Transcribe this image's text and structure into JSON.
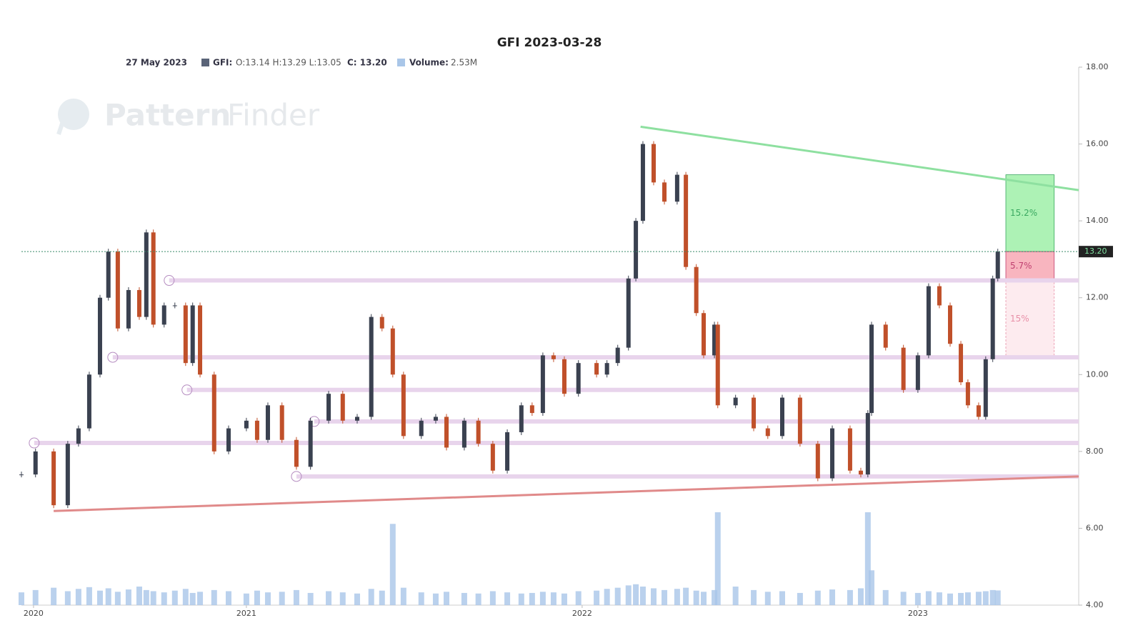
{
  "chart_data": {
    "type": "candlestick",
    "title": "GFI 2023-03-28",
    "header": {
      "date": "27 May 2023",
      "symbol": "GFI:",
      "ohl": "O:13.14 H:13.29 L:13.05",
      "close": "C: 13.20",
      "volume_label": "Volume:",
      "volume": "2.53M"
    },
    "watermark": {
      "first": "Pattern",
      "second": "Finder"
    },
    "x": [
      2020.33,
      2020.372,
      2020.426,
      2020.468,
      2020.5,
      2020.532,
      2020.564,
      2020.589,
      2020.617,
      2020.649,
      2020.681,
      2020.702,
      2020.723,
      2020.755,
      2020.787,
      2020.819,
      2020.84,
      2020.862,
      2020.904,
      2020.947,
      2021.0,
      2021.032,
      2021.064,
      2021.106,
      2021.149,
      2021.191,
      2021.245,
      2021.287,
      2021.33,
      2021.372,
      2021.404,
      2021.436,
      2021.468,
      2021.521,
      2021.564,
      2021.596,
      2021.649,
      2021.691,
      2021.734,
      2021.777,
      2021.819,
      2021.851,
      2021.883,
      2021.915,
      2021.947,
      2021.989,
      2022.043,
      2022.074,
      2022.106,
      2022.138,
      2022.16,
      2022.181,
      2022.213,
      2022.245,
      2022.283,
      2022.309,
      2022.34,
      2022.362,
      2022.394,
      2022.404,
      2022.457,
      2022.511,
      2022.553,
      2022.596,
      2022.649,
      2022.702,
      2022.745,
      2022.798,
      2022.83,
      2022.851,
      2022.862,
      2022.904,
      2022.957,
      2023.0,
      2023.032,
      2023.064,
      2023.096,
      2023.128,
      2023.149,
      2023.181,
      2023.202,
      2023.223,
      2023.238
    ],
    "series": [
      {
        "name": "GFI",
        "color": "#c0502a",
        "up_color": "#3a4150",
        "values": [
          7.4,
          8.0,
          6.6,
          8.2,
          8.6,
          10.0,
          12.0,
          13.2,
          11.2,
          12.2,
          11.5,
          13.7,
          11.3,
          11.8,
          11.8,
          10.3,
          11.8,
          10.0,
          8.0,
          8.6,
          8.8,
          8.3,
          9.2,
          8.3,
          7.6,
          8.8,
          9.5,
          8.8,
          8.9,
          11.5,
          11.2,
          10.0,
          8.4,
          8.8,
          8.9,
          8.1,
          8.8,
          8.2,
          7.5,
          8.5,
          9.2,
          9.0,
          10.5,
          10.4,
          9.5,
          10.3,
          10.0,
          10.3,
          10.7,
          12.5,
          14.0,
          16.0,
          15.0,
          14.5,
          15.2,
          12.8,
          11.6,
          10.5,
          11.3,
          9.2,
          9.4,
          8.6,
          8.4,
          9.4,
          8.2,
          7.3,
          8.6,
          7.5,
          7.4,
          9.0,
          11.3,
          10.7,
          9.6,
          10.5,
          12.3,
          11.8,
          10.8,
          9.8,
          9.2,
          8.9,
          10.4,
          12.5,
          13.2
        ]
      },
      {
        "name": "Volume",
        "color": "#a9c6e8",
        "axis": "y2",
        "values": [
          2.2,
          2.6,
          3.0,
          2.4,
          2.8,
          3.1,
          2.5,
          2.9,
          2.3,
          2.7,
          3.2,
          2.6,
          2.4,
          2.2,
          2.5,
          2.8,
          2.1,
          2.3,
          2.6,
          2.4,
          2.0,
          2.5,
          2.2,
          2.3,
          2.6,
          2.1,
          2.4,
          2.2,
          2.0,
          2.8,
          2.5,
          14.0,
          3.0,
          2.2,
          2.0,
          2.3,
          2.1,
          2.0,
          2.4,
          2.2,
          2.0,
          2.1,
          2.3,
          2.2,
          2.0,
          2.4,
          2.5,
          2.8,
          3.0,
          3.4,
          3.6,
          3.2,
          2.9,
          2.6,
          2.8,
          3.0,
          2.5,
          2.3,
          2.6,
          16.0,
          3.2,
          2.6,
          2.3,
          2.4,
          2.1,
          2.5,
          2.7,
          2.6,
          2.9,
          16.0,
          6.0,
          2.6,
          2.3,
          2.1,
          2.4,
          2.2,
          2.0,
          2.1,
          2.2,
          2.3,
          2.4,
          2.6,
          2.53
        ]
      }
    ],
    "xlim": [
      2020.33,
      2023.479
    ],
    "xticks": [
      {
        "value": 2020.366,
        "label": "2020"
      },
      {
        "value": 2021.0,
        "label": "2021"
      },
      {
        "value": 2022.0,
        "label": "2022"
      },
      {
        "value": 2023.0,
        "label": "2023"
      }
    ],
    "ylim": [
      4,
      18
    ],
    "yticks": [
      {
        "value": 4,
        "label": "4.00"
      },
      {
        "value": 6,
        "label": "6.00"
      },
      {
        "value": 8,
        "label": "8.00"
      },
      {
        "value": 10,
        "label": "10.00"
      },
      {
        "value": 12,
        "label": "12.00"
      },
      {
        "value": 14,
        "label": "14.00"
      },
      {
        "value": 16,
        "label": "16.00"
      },
      {
        "value": 18,
        "label": "18.00"
      }
    ],
    "y2lim": [
      0,
      16
    ],
    "last_price": {
      "value": 13.2,
      "label": "13.20"
    },
    "levels": [
      {
        "value": 12.45,
        "from": 2020.77
      },
      {
        "value": 10.45,
        "from": 2020.602
      },
      {
        "value": 9.6,
        "from": 2020.823
      },
      {
        "value": 8.78,
        "from": 2021.202
      },
      {
        "value": 8.22,
        "from": 2020.368
      },
      {
        "value": 7.35,
        "from": 2021.149
      }
    ],
    "trendlines": [
      {
        "color": "#8ee0a0",
        "x": [
          2022.174,
          2023.479
        ],
        "y": [
          16.45,
          14.8
        ]
      },
      {
        "color": "#e08a8a",
        "x": [
          2020.426,
          2023.479
        ],
        "y": [
          6.45,
          7.35
        ]
      }
    ],
    "target_x": [
      2023.262,
      2023.406
    ],
    "targets": [
      {
        "label": "15.2%",
        "from": 13.2,
        "to": 15.2,
        "color": "#9ff0a8",
        "text_color": "#3aa860"
      },
      {
        "label": "5.7%",
        "from": 12.45,
        "to": 13.2,
        "color": "#f7a8b4",
        "text_color": "#c04070"
      },
      {
        "label": "15%",
        "from": 10.45,
        "to": 12.45,
        "color": "#fde8ec",
        "text_color": "#e890a8"
      }
    ]
  }
}
